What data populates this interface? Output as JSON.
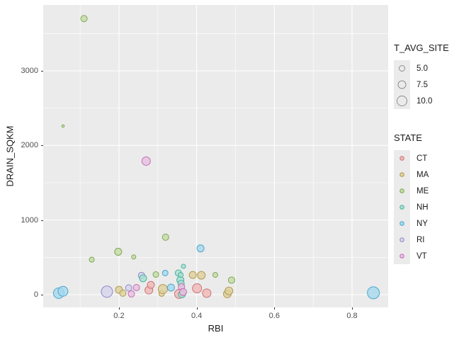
{
  "chart_data": {
    "type": "scatter",
    "xlabel": "RBI",
    "ylabel": "DRAIN_SQKM",
    "xlim": [
      0.005,
      0.893
    ],
    "ylim": [
      -171,
      3883
    ],
    "x_ticks": [
      {
        "v": 0.2,
        "label": "0.2"
      },
      {
        "v": 0.4,
        "label": "0.4"
      },
      {
        "v": 0.6,
        "label": "0.6"
      },
      {
        "v": 0.8,
        "label": "0.8"
      }
    ],
    "x_minor": [
      0.1,
      0.3,
      0.5,
      0.7
    ],
    "y_ticks": [
      {
        "v": 0,
        "label": "0"
      },
      {
        "v": 1000,
        "label": "1000"
      },
      {
        "v": 2000,
        "label": "2000"
      },
      {
        "v": 3000,
        "label": "3000"
      }
    ],
    "y_minor": [
      500,
      1500,
      2500,
      3500
    ],
    "grid": true,
    "legend_position": "right",
    "panel_bg": "#ebebeb",
    "grid_color": "#ffffff",
    "tick_text_color": "#4d4d4d",
    "size_legend": {
      "title": "T_AVG_SITE",
      "items": [
        {
          "label": "5.0",
          "r": 4
        },
        {
          "label": "7.5",
          "r": 5.5
        },
        {
          "label": "10.0",
          "r": 7
        }
      ],
      "key_stroke": "#8f8f8f"
    },
    "color_legend": {
      "title": "STATE",
      "items": [
        {
          "label": "CT",
          "stroke": "#c9747c",
          "fill": "#f0b8b4"
        },
        {
          "label": "MA",
          "stroke": "#b39b4f",
          "fill": "#ddd09c"
        },
        {
          "label": "ME",
          "stroke": "#7da657",
          "fill": "#c4dca2"
        },
        {
          "label": "NH",
          "stroke": "#4bb2a0",
          "fill": "#a9ded1"
        },
        {
          "label": "NY",
          "stroke": "#4fa6cd",
          "fill": "#a5d8ee"
        },
        {
          "label": "RI",
          "stroke": "#8f8ac2",
          "fill": "#d6d3ec"
        },
        {
          "label": "VT",
          "stroke": "#bf6eb4",
          "fill": "#e9bfdf"
        }
      ]
    },
    "points": [
      {
        "x": 0.045,
        "y": 20,
        "state": "NY",
        "r": 7.5
      },
      {
        "x": 0.056,
        "y": 45,
        "state": "NY",
        "r": 7
      },
      {
        "x": 0.056,
        "y": 2260,
        "state": "ME",
        "r": 1.8
      },
      {
        "x": 0.11,
        "y": 3700,
        "state": "ME",
        "r": 4.5
      },
      {
        "x": 0.13,
        "y": 470,
        "state": "ME",
        "r": 3.5
      },
      {
        "x": 0.169,
        "y": 40,
        "state": "RI",
        "r": 8
      },
      {
        "x": 0.198,
        "y": 575,
        "state": "ME",
        "r": 5
      },
      {
        "x": 0.2,
        "y": 65,
        "state": "MA",
        "r": 5
      },
      {
        "x": 0.21,
        "y": 20,
        "state": "MA",
        "r": 4.5
      },
      {
        "x": 0.225,
        "y": 90,
        "state": "RI",
        "r": 4.5
      },
      {
        "x": 0.232,
        "y": 10,
        "state": "VT",
        "r": 4.5
      },
      {
        "x": 0.238,
        "y": 505,
        "state": "ME",
        "r": 3
      },
      {
        "x": 0.245,
        "y": 95,
        "state": "VT",
        "r": 4.5
      },
      {
        "x": 0.258,
        "y": 258,
        "state": "RI",
        "r": 4.5
      },
      {
        "x": 0.262,
        "y": 220,
        "state": "NH",
        "r": 5
      },
      {
        "x": 0.27,
        "y": 1790,
        "state": "VT",
        "r": 6
      },
      {
        "x": 0.277,
        "y": 60,
        "state": "CT",
        "r": 5.5
      },
      {
        "x": 0.282,
        "y": 130,
        "state": "CT",
        "r": 5
      },
      {
        "x": 0.295,
        "y": 270,
        "state": "ME",
        "r": 4
      },
      {
        "x": 0.31,
        "y": 15,
        "state": "MA",
        "r": 4
      },
      {
        "x": 0.313,
        "y": 75,
        "state": "MA",
        "r": 6.5
      },
      {
        "x": 0.319,
        "y": 290,
        "state": "NY",
        "r": 4
      },
      {
        "x": 0.32,
        "y": 770,
        "state": "ME",
        "r": 4.5
      },
      {
        "x": 0.334,
        "y": 95,
        "state": "NY",
        "r": 5
      },
      {
        "x": 0.353,
        "y": 290,
        "state": "NH",
        "r": 4.5
      },
      {
        "x": 0.355,
        "y": 10,
        "state": "CT",
        "r": 6.5
      },
      {
        "x": 0.358,
        "y": 195,
        "state": "NH",
        "r": 5
      },
      {
        "x": 0.359,
        "y": 265,
        "state": "NH",
        "r": 3.5
      },
      {
        "x": 0.36,
        "y": 150,
        "state": "NH",
        "r": 4.5
      },
      {
        "x": 0.361,
        "y": 105,
        "state": "VT",
        "r": 4.5
      },
      {
        "x": 0.362,
        "y": 5,
        "state": "NH",
        "r": 5
      },
      {
        "x": 0.365,
        "y": 35,
        "state": "VT",
        "r": 5
      },
      {
        "x": 0.366,
        "y": 380,
        "state": "NH",
        "r": 3
      },
      {
        "x": 0.39,
        "y": 265,
        "state": "MA",
        "r": 5
      },
      {
        "x": 0.401,
        "y": 85,
        "state": "CT",
        "r": 6.5
      },
      {
        "x": 0.41,
        "y": 620,
        "state": "NY",
        "r": 5
      },
      {
        "x": 0.412,
        "y": 260,
        "state": "MA",
        "r": 5.5
      },
      {
        "x": 0.426,
        "y": 20,
        "state": "CT",
        "r": 6
      },
      {
        "x": 0.448,
        "y": 265,
        "state": "ME",
        "r": 3.5
      },
      {
        "x": 0.479,
        "y": 10,
        "state": "MA",
        "r": 5.5
      },
      {
        "x": 0.483,
        "y": 50,
        "state": "MA",
        "r": 5.5
      },
      {
        "x": 0.49,
        "y": 195,
        "state": "ME",
        "r": 4.5
      },
      {
        "x": 0.855,
        "y": 25,
        "state": "NY",
        "r": 8.5
      }
    ]
  }
}
